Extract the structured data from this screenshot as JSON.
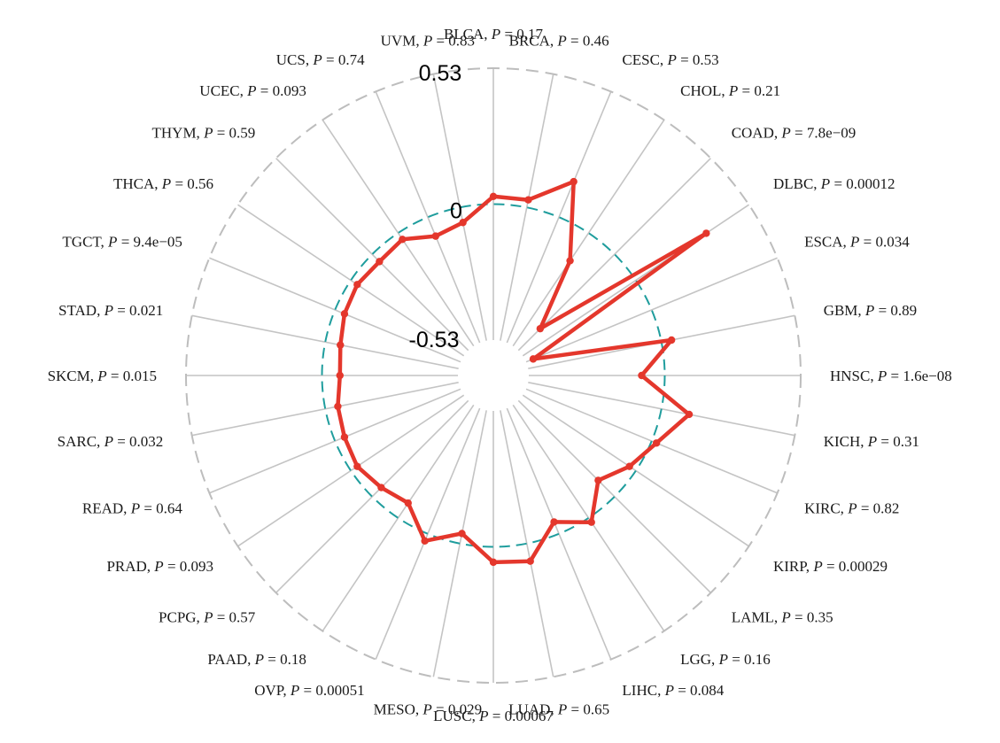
{
  "chart_data": {
    "type": "radar",
    "scale_labels": {
      "max": "0.53",
      "zero": "0",
      "min": "-0.53"
    },
    "range": [
      -0.53,
      0.53
    ],
    "grid": "radial spokes",
    "categories": [
      {
        "name": "BLCA",
        "p": "0.17"
      },
      {
        "name": "BRCA",
        "p": "0.46"
      },
      {
        "name": "CESC",
        "p": "0.53"
      },
      {
        "name": "CHOL",
        "p": "0.21"
      },
      {
        "name": "COAD",
        "p": "7.8e−09"
      },
      {
        "name": "DLBC",
        "p": "0.00012"
      },
      {
        "name": "ESCA",
        "p": "0.034"
      },
      {
        "name": "GBM",
        "p": "0.89"
      },
      {
        "name": "HNSC",
        "p": "1.6e−08"
      },
      {
        "name": "KICH",
        "p": "0.31"
      },
      {
        "name": "KIRC",
        "p": "0.82"
      },
      {
        "name": "KIRP",
        "p": "0.00029"
      },
      {
        "name": "LAML",
        "p": "0.35"
      },
      {
        "name": "LGG",
        "p": "0.16"
      },
      {
        "name": "LIHC",
        "p": "0.084"
      },
      {
        "name": "LUAD",
        "p": "0.65"
      },
      {
        "name": "LUSC",
        "p": "0.00067"
      },
      {
        "name": "MESO",
        "p": "0.029"
      },
      {
        "name": "OVP",
        "p": "0.00051"
      },
      {
        "name": "PAAD",
        "p": "0.18"
      },
      {
        "name": "PCPG",
        "p": "0.57"
      },
      {
        "name": "PRAD",
        "p": "0.093"
      },
      {
        "name": "READ",
        "p": "0.64"
      },
      {
        "name": "SARC",
        "p": "0.032"
      },
      {
        "name": "SKCM",
        "p": "0.015"
      },
      {
        "name": "STAD",
        "p": "0.021"
      },
      {
        "name": "TGCT",
        "p": "9.4e−05"
      },
      {
        "name": "THCA",
        "p": "0.56"
      },
      {
        "name": "THYM",
        "p": "0.59"
      },
      {
        "name": "UCEC",
        "p": "0.093"
      },
      {
        "name": "UCS",
        "p": "0.74"
      },
      {
        "name": "UVM",
        "p": "0.83"
      }
    ],
    "values": [
      0.03,
      0.03,
      0.15,
      -0.13,
      -0.41,
      0.33,
      -0.5,
      0.04,
      -0.09,
      0.11,
      0.02,
      -0.03,
      -0.09,
      0.02,
      -0.05,
      0.07,
      0.06,
      -0.04,
      0.03,
      -0.07,
      -0.05,
      -0.03,
      -0.04,
      -0.05,
      -0.07,
      -0.06,
      -0.04,
      -0.03,
      -0.04,
      -0.03,
      -0.08,
      -0.06
    ],
    "colors": {
      "series": "#e4372c",
      "zero_ring": "#1f9d9d",
      "spokes": "#c4c4c4",
      "outer_ring": "#bdbdbd"
    }
  }
}
